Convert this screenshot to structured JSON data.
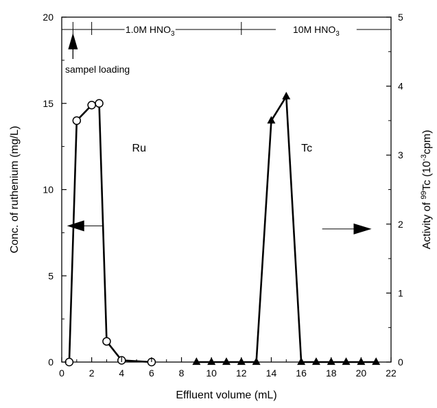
{
  "chart_data": {
    "type": "line",
    "xlabel": "Effluent volume (mL)",
    "ylabel": "Conc. of ruthenium (mg/L)",
    "ylabel_right_parts": [
      "Activity of ",
      "99",
      "Tc (10",
      "-3",
      "cpm)"
    ],
    "xlim": [
      0,
      22
    ],
    "ylim": [
      0,
      20
    ],
    "ylim_right": [
      0,
      5
    ],
    "x_ticks": [
      0,
      2,
      4,
      6,
      8,
      10,
      12,
      14,
      16,
      18,
      20,
      22
    ],
    "y_ticks": [
      0,
      5,
      10,
      15,
      20
    ],
    "y_ticks_right": [
      0,
      1,
      2,
      3,
      4,
      5
    ],
    "grid": false,
    "series": [
      {
        "name": "Ru",
        "axis": "left",
        "marker": "open-circle",
        "x": [
          0.5,
          1,
          2,
          2.5,
          3,
          4,
          6
        ],
        "y": [
          0,
          14,
          14.9,
          15,
          1.2,
          0.1,
          0
        ]
      },
      {
        "name": "Tc",
        "axis": "right",
        "marker": "filled-triangle",
        "x": [
          9,
          10,
          11,
          12,
          13,
          14,
          15,
          16,
          17,
          18,
          19,
          20,
          21
        ],
        "y": [
          0,
          0,
          0,
          0,
          0,
          3.5,
          3.85,
          0,
          0,
          0,
          0,
          0,
          0
        ]
      }
    ],
    "annotations": {
      "elution_1_parts": [
        "1.0M HNO",
        "3"
      ],
      "elution_2_parts": [
        "10M HNO",
        "3"
      ],
      "loading_label": "sampel loading"
    }
  }
}
